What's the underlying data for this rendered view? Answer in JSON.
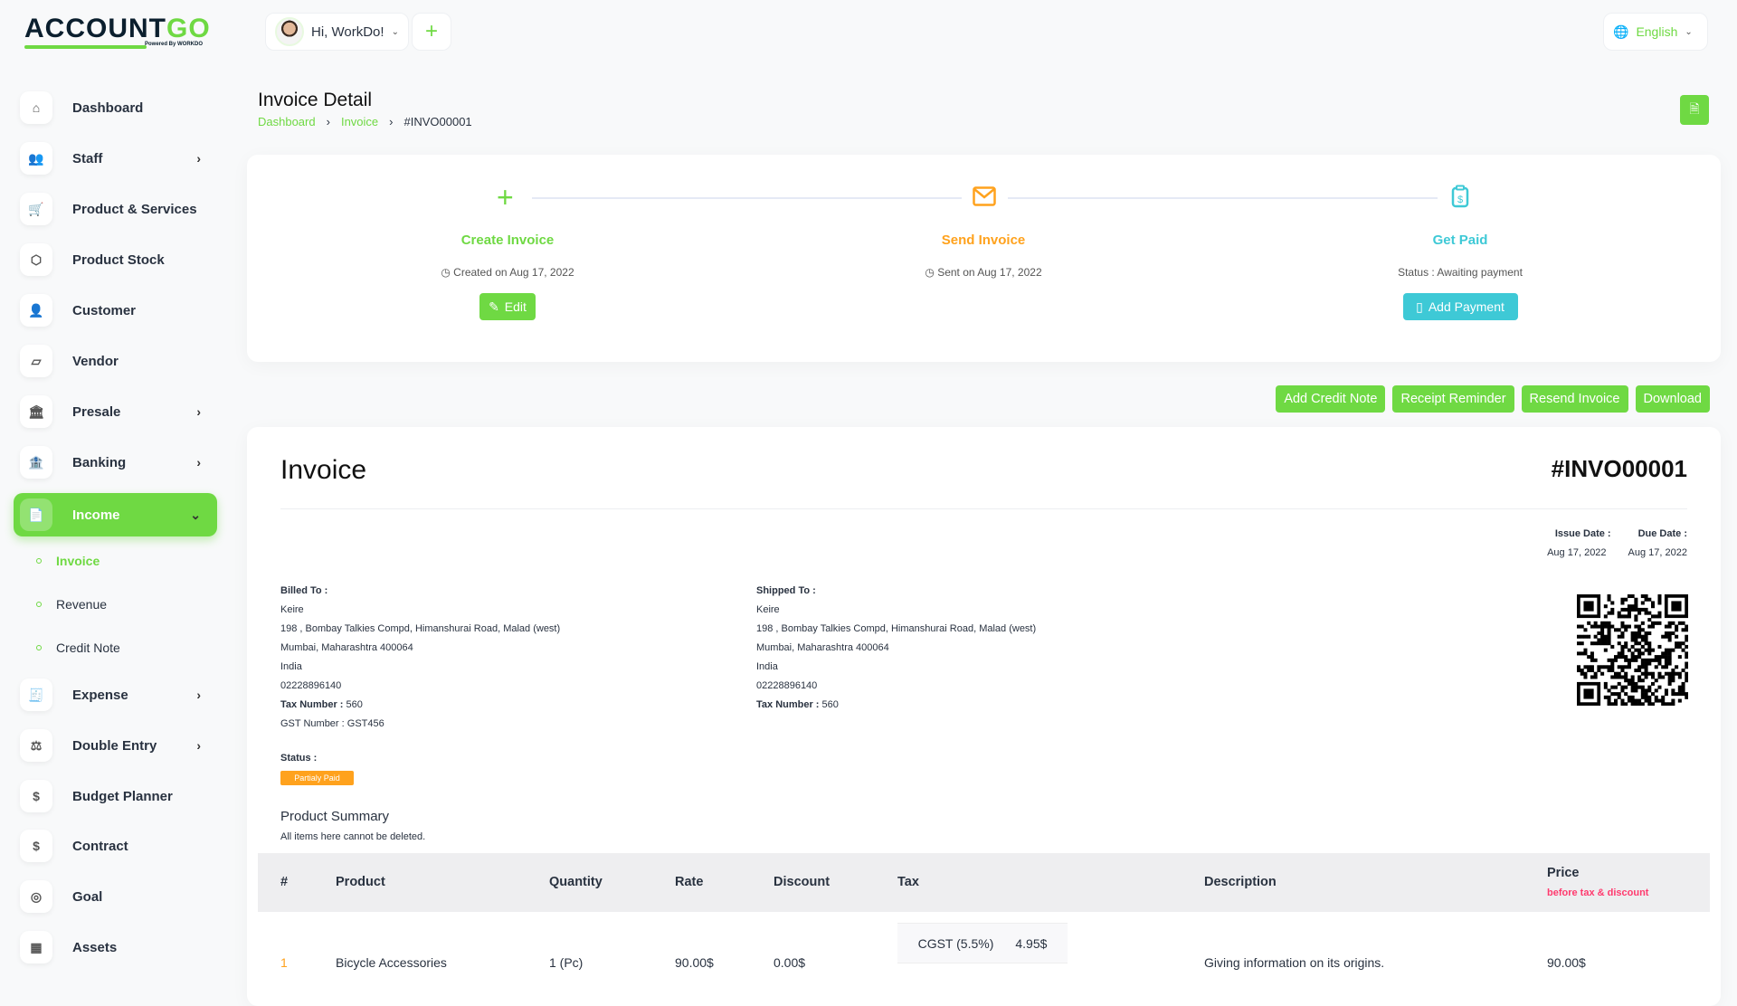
{
  "brand": {
    "name_a": "ACCOUNT",
    "name_b": "GO",
    "sub": "Powered By WORKDO",
    "accent": "#6fd943"
  },
  "header": {
    "greeting": "Hi, WorkDo!",
    "language": "English"
  },
  "sidebar": {
    "items": [
      {
        "label": "Dashboard",
        "icon": "home-icon",
        "sym": "⌂"
      },
      {
        "label": "Staff",
        "icon": "users-icon",
        "sym": "👥",
        "arrow": true
      },
      {
        "label": "Product & Services",
        "icon": "cart-icon",
        "sym": "🛒"
      },
      {
        "label": "Product Stock",
        "icon": "box-icon",
        "sym": "⬡"
      },
      {
        "label": "Customer",
        "icon": "user-plus-icon",
        "sym": "👤"
      },
      {
        "label": "Vendor",
        "icon": "note-icon",
        "sym": "▱"
      },
      {
        "label": "Presale",
        "icon": "building-icon",
        "sym": "🏛",
        "arrow": true
      },
      {
        "label": "Banking",
        "icon": "bank-icon",
        "sym": "🏦",
        "arrow": true
      },
      {
        "label": "Income",
        "icon": "file-invoice-icon",
        "sym": "📄",
        "active": true
      },
      {
        "label": "Expense",
        "icon": "receipt-icon",
        "sym": "🧾",
        "arrow": true
      },
      {
        "label": "Double Entry",
        "icon": "scale-icon",
        "sym": "⚖",
        "arrow": true
      },
      {
        "label": "Budget Planner",
        "icon": "coins-icon",
        "sym": "$"
      },
      {
        "label": "Contract",
        "icon": "coins-icon",
        "sym": "$"
      },
      {
        "label": "Goal",
        "icon": "target-icon",
        "sym": "◎"
      },
      {
        "label": "Assets",
        "icon": "calculator-icon",
        "sym": "▦"
      }
    ],
    "income_sub": [
      "Invoice",
      "Revenue",
      "Credit Note"
    ]
  },
  "page": {
    "title": "Invoice Detail",
    "breadcrumb": [
      "Dashboard",
      "Invoice",
      "#INVO00001"
    ]
  },
  "steps": [
    {
      "title": "Create Invoice",
      "sub": "Created on Aug 17, 2022",
      "button": "Edit",
      "color": "#6fd943"
    },
    {
      "title": "Send Invoice",
      "sub": "Sent on Aug 17, 2022",
      "color": "#ffa21d"
    },
    {
      "title": "Get Paid",
      "sub": "Status : Awaiting payment",
      "button": "Add Payment",
      "color": "#3ec9d6"
    }
  ],
  "actions": [
    "Add Credit Note",
    "Receipt Reminder",
    "Resend Invoice",
    "Download"
  ],
  "invoice": {
    "heading": "Invoice",
    "number": "#INVO00001",
    "issue_label": "Issue Date :",
    "issue": "Aug 17, 2022",
    "due_label": "Due Date :",
    "due": "Aug 17, 2022",
    "billed": {
      "label": "Billed To :",
      "name": "Keire",
      "addr": "198 , Bombay Talkies Compd, Himanshurai Road, Malad (west)",
      "city": "Mumbai, Maharashtra 400064",
      "country": "India",
      "phone": "02228896140",
      "tax_label": "Tax Number :",
      "tax": " 560",
      "gst": "GST Number : GST456"
    },
    "shipped": {
      "label": "Shipped To :",
      "name": "Keire",
      "addr": "198 , Bombay Talkies Compd, Himanshurai Road, Malad (west)",
      "city": "Mumbai, Maharashtra 400064",
      "country": "India",
      "phone": "02228896140",
      "tax_label": "Tax Number :",
      "tax": " 560"
    },
    "status_label": "Status :",
    "status": "Partialy Paid",
    "status_color": "#ffa21d",
    "summary_title": "Product Summary",
    "summary_note": "All items here cannot be deleted.",
    "columns": [
      "#",
      "Product",
      "Quantity",
      "Rate",
      "Discount",
      "Tax",
      "Description",
      "Price"
    ],
    "price_note": "before tax & discount",
    "rows": [
      {
        "n": "1",
        "product": "Bicycle Accessories",
        "qty": "1 (Pc)",
        "rate": "90.00$",
        "discount": "0.00$",
        "tax_name": "CGST (5.5%)",
        "tax_amt": "4.95$",
        "desc": "Giving information on its origins.",
        "price": "90.00$"
      }
    ]
  }
}
